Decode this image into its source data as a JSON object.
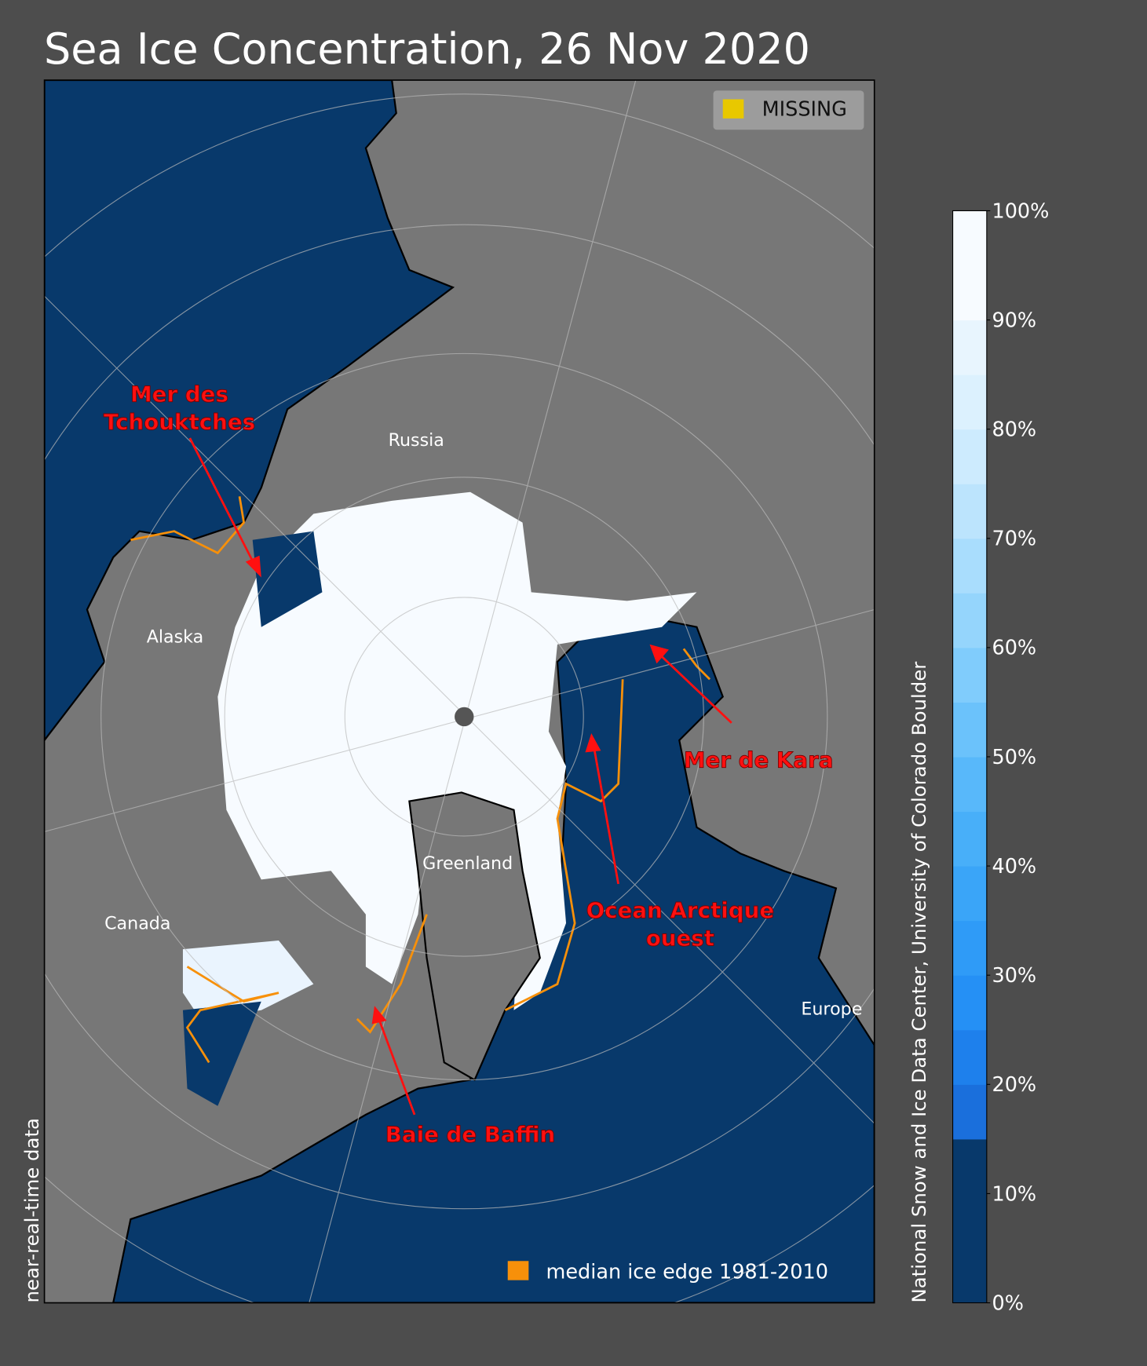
{
  "title": "Sea Ice Concentration, 26 Nov 2020",
  "legend_missing": {
    "label": "MISSING",
    "color": "#e8c800"
  },
  "legend_median": {
    "label": "median ice edge 1981-2010",
    "color": "#f7900a"
  },
  "side_left": "near-real-time data",
  "side_right": "National Snow and Ice Data Center, University of Colorado Boulder",
  "regions": {
    "russia": "Russia",
    "alaska": "Alaska",
    "canada": "Canada",
    "greenland": "Greenland",
    "europe": "Europe"
  },
  "annotations": {
    "chukchi_line1": "Mer des",
    "chukchi_line2": "Tchouktches",
    "kara": "Mer de Kara",
    "arctic_line1": "Ocean Arctique",
    "arctic_line2": "ouest",
    "baffin": "Baie de Baffin"
  },
  "colorbar": {
    "ticks": [
      "0%",
      "10%",
      "20%",
      "30%",
      "40%",
      "50%",
      "60%",
      "70%",
      "80%",
      "90%",
      "100%"
    ],
    "range": [
      0,
      100
    ],
    "threshold": 15,
    "step": 5,
    "low_color": "#08396b",
    "colors": [
      "#1a6fdc",
      "#1e80ec",
      "#2590f5",
      "#2f9bf7",
      "#3aa5f8",
      "#48aff9",
      "#58b8fa",
      "#6bc2fb",
      "#80ccfc",
      "#95d5fc",
      "#a9ddfd",
      "#bce4fd",
      "#cdebfe",
      "#dcf1fe",
      "#e8f5fe",
      "#f7fbff",
      "#f7fbff"
    ]
  },
  "colors": {
    "ocean": "#08396b",
    "land": "#777777",
    "ice": "#f7fbff",
    "background": "#4d4d4d"
  }
}
